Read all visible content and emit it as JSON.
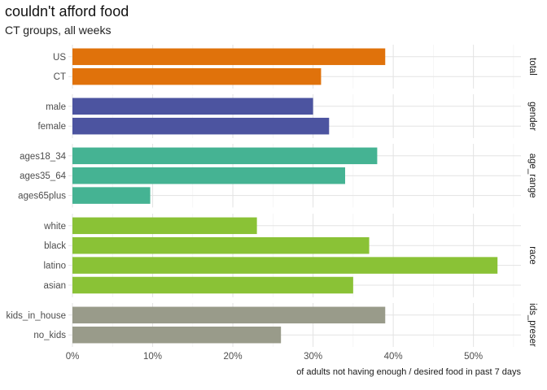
{
  "title": "couldn't afford food",
  "subtitle": "CT groups, all weeks",
  "chart_data": {
    "type": "bar",
    "orientation": "horizontal",
    "xlabel": "of adults not having enough / desired food in past 7 days",
    "ylabel": "",
    "xlim": [
      0,
      0.56
    ],
    "x_ticks": [
      0,
      0.1,
      0.2,
      0.3,
      0.4,
      0.5
    ],
    "x_tick_labels": [
      "0%",
      "10%",
      "20%",
      "30%",
      "40%",
      "50%"
    ],
    "grid": true,
    "facets": [
      {
        "label": "total",
        "color": "#E0720B",
        "categories": [
          "US",
          "CT"
        ],
        "values": [
          0.39,
          0.31
        ]
      },
      {
        "label": "gender",
        "color": "#4C54A0",
        "categories": [
          "male",
          "female"
        ],
        "values": [
          0.3,
          0.32
        ]
      },
      {
        "label": "age_range",
        "color": "#45B393",
        "categories": [
          "ages18_34",
          "ages35_64",
          "ages65plus"
        ],
        "values": [
          0.38,
          0.34,
          0.097
        ]
      },
      {
        "label": "race",
        "color": "#8AC236",
        "categories": [
          "white",
          "black",
          "latino",
          "asian"
        ],
        "values": [
          0.23,
          0.37,
          0.53,
          0.35
        ]
      },
      {
        "label": "ids_preser",
        "color": "#999B8A",
        "categories": [
          "kids_in_house",
          "no_kids"
        ],
        "values": [
          0.39,
          0.26
        ]
      }
    ]
  }
}
